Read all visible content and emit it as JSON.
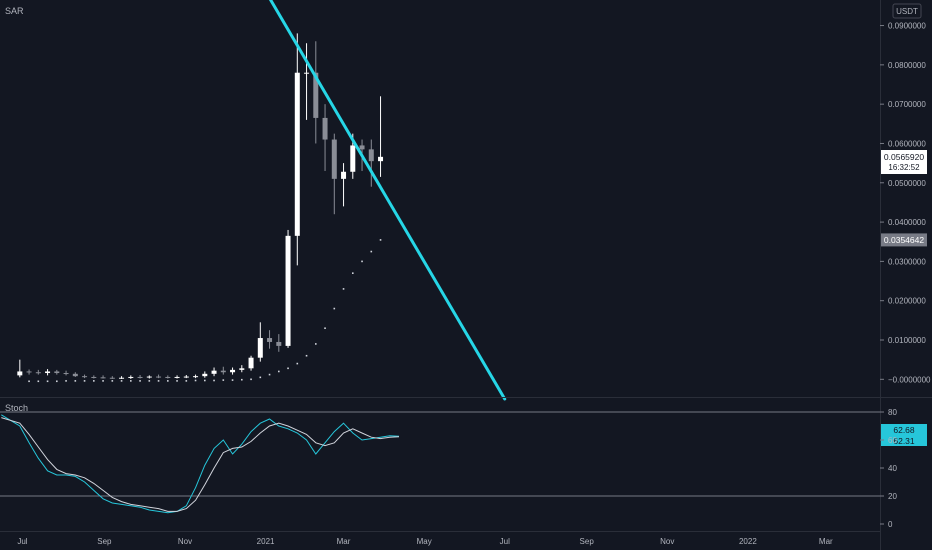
{
  "chart_data": [
    {
      "type": "candlestick",
      "title": "SAR",
      "currency": "USDT",
      "y_ticks": [
        "0.0900000",
        "0.0800000",
        "0.0700000",
        "0.0600000",
        "0.0500000",
        "0.0400000",
        "0.0300000",
        "0.0200000",
        "0.0100000",
        "−0.0000000"
      ],
      "y_tick_values": [
        0.09,
        0.08,
        0.07,
        0.06,
        0.05,
        0.04,
        0.03,
        0.02,
        0.01,
        0.0
      ],
      "ylim": [
        -0.0045,
        0.0965
      ],
      "x_ticks": [
        "Jul",
        "Sep",
        "Nov",
        "2021",
        "Mar",
        "May",
        "Jul",
        "Sep",
        "Nov",
        "2022",
        "Mar"
      ],
      "x_tick_dates": [
        "2020-07-01",
        "2020-09-01",
        "2020-11-01",
        "2021-01-01",
        "2021-03-01",
        "2021-05-01",
        "2021-07-01",
        "2021-09-01",
        "2021-11-01",
        "2022-01-01",
        "2022-03-01"
      ],
      "x_range_dates": [
        "2020-06-14",
        "2022-04-11"
      ],
      "current_price": "0.0565920",
      "countdown": "16:32:52",
      "sar_label": "0.0354642",
      "sar_value": 0.0354642,
      "candles": [
        {
          "t": "2020-06-29",
          "o": 0.001,
          "h": 0.005,
          "l": 0.0005,
          "c": 0.002
        },
        {
          "t": "2020-07-06",
          "o": 0.002,
          "h": 0.0025,
          "l": 0.0012,
          "c": 0.0018
        },
        {
          "t": "2020-07-13",
          "o": 0.0018,
          "h": 0.0024,
          "l": 0.0012,
          "c": 0.0016
        },
        {
          "t": "2020-07-20",
          "o": 0.0016,
          "h": 0.0026,
          "l": 0.001,
          "c": 0.002
        },
        {
          "t": "2020-07-27",
          "o": 0.002,
          "h": 0.0024,
          "l": 0.0012,
          "c": 0.0016
        },
        {
          "t": "2020-08-03",
          "o": 0.0016,
          "h": 0.0022,
          "l": 0.001,
          "c": 0.0014
        },
        {
          "t": "2020-08-10",
          "o": 0.0014,
          "h": 0.0018,
          "l": 0.0006,
          "c": 0.0008
        },
        {
          "t": "2020-08-17",
          "o": 0.0008,
          "h": 0.0012,
          "l": 0.0003,
          "c": 0.0006
        },
        {
          "t": "2020-08-24",
          "o": 0.0006,
          "h": 0.001,
          "l": 0.0002,
          "c": 0.0005
        },
        {
          "t": "2020-08-31",
          "o": 0.0005,
          "h": 0.001,
          "l": 0.0002,
          "c": 0.0004
        },
        {
          "t": "2020-09-07",
          "o": 0.0004,
          "h": 0.0008,
          "l": 0.0001,
          "c": 0.0003
        },
        {
          "t": "2020-09-14",
          "o": 0.0003,
          "h": 0.0008,
          "l": 0.0001,
          "c": 0.0004
        },
        {
          "t": "2020-09-21",
          "o": 0.0004,
          "h": 0.001,
          "l": 0.0001,
          "c": 0.0006
        },
        {
          "t": "2020-09-28",
          "o": 0.0006,
          "h": 0.0011,
          "l": 0.0002,
          "c": 0.0005
        },
        {
          "t": "2020-10-05",
          "o": 0.0005,
          "h": 0.001,
          "l": 0.0002,
          "c": 0.0007
        },
        {
          "t": "2020-10-12",
          "o": 0.0007,
          "h": 0.0012,
          "l": 0.0003,
          "c": 0.0006
        },
        {
          "t": "2020-10-19",
          "o": 0.0006,
          "h": 0.001,
          "l": 0.0002,
          "c": 0.0005
        },
        {
          "t": "2020-10-26",
          "o": 0.0005,
          "h": 0.001,
          "l": 0.0002,
          "c": 0.0006
        },
        {
          "t": "2020-11-02",
          "o": 0.0006,
          "h": 0.0011,
          "l": 0.0003,
          "c": 0.0007
        },
        {
          "t": "2020-11-09",
          "o": 0.0007,
          "h": 0.0012,
          "l": 0.0003,
          "c": 0.0008
        },
        {
          "t": "2020-11-16",
          "o": 0.0008,
          "h": 0.002,
          "l": 0.0004,
          "c": 0.0014
        },
        {
          "t": "2020-11-23",
          "o": 0.0014,
          "h": 0.003,
          "l": 0.0008,
          "c": 0.0022
        },
        {
          "t": "2020-11-30",
          "o": 0.0022,
          "h": 0.0032,
          "l": 0.0012,
          "c": 0.0018
        },
        {
          "t": "2020-12-07",
          "o": 0.0018,
          "h": 0.003,
          "l": 0.0012,
          "c": 0.0024
        },
        {
          "t": "2020-12-14",
          "o": 0.0024,
          "h": 0.0036,
          "l": 0.0018,
          "c": 0.0028
        },
        {
          "t": "2020-12-21",
          "o": 0.0028,
          "h": 0.006,
          "l": 0.0022,
          "c": 0.0055
        },
        {
          "t": "2020-12-28",
          "o": 0.0055,
          "h": 0.0145,
          "l": 0.0045,
          "c": 0.0105
        },
        {
          "t": "2021-01-04",
          "o": 0.0105,
          "h": 0.0125,
          "l": 0.0078,
          "c": 0.0095
        },
        {
          "t": "2021-01-11",
          "o": 0.0095,
          "h": 0.0115,
          "l": 0.007,
          "c": 0.0085
        },
        {
          "t": "2021-01-18",
          "o": 0.0085,
          "h": 0.038,
          "l": 0.008,
          "c": 0.0365
        },
        {
          "t": "2021-01-25",
          "o": 0.0365,
          "h": 0.088,
          "l": 0.029,
          "c": 0.078
        },
        {
          "t": "2021-02-01",
          "o": 0.078,
          "h": 0.0855,
          "l": 0.066,
          "c": 0.078
        },
        {
          "t": "2021-02-08",
          "o": 0.078,
          "h": 0.086,
          "l": 0.06,
          "c": 0.0665
        },
        {
          "t": "2021-02-15",
          "o": 0.0665,
          "h": 0.07,
          "l": 0.053,
          "c": 0.061
        },
        {
          "t": "2021-02-22",
          "o": 0.061,
          "h": 0.0625,
          "l": 0.042,
          "c": 0.051
        },
        {
          "t": "2021-03-01",
          "o": 0.051,
          "h": 0.055,
          "l": 0.044,
          "c": 0.0528
        },
        {
          "t": "2021-03-08",
          "o": 0.0528,
          "h": 0.0625,
          "l": 0.051,
          "c": 0.0595
        },
        {
          "t": "2021-03-15",
          "o": 0.0595,
          "h": 0.061,
          "l": 0.053,
          "c": 0.0585
        },
        {
          "t": "2021-03-22",
          "o": 0.0585,
          "h": 0.061,
          "l": 0.049,
          "c": 0.0555
        },
        {
          "t": "2021-03-29",
          "o": 0.0555,
          "h": 0.072,
          "l": 0.0515,
          "c": 0.0566
        }
      ],
      "sar_points": [
        {
          "t": "2020-07-06",
          "v": -0.0005
        },
        {
          "t": "2020-07-13",
          "v": -0.0005
        },
        {
          "t": "2020-07-20",
          "v": -0.0005
        },
        {
          "t": "2020-07-27",
          "v": -0.0005
        },
        {
          "t": "2020-08-03",
          "v": -0.0004
        },
        {
          "t": "2020-08-10",
          "v": -0.0004
        },
        {
          "t": "2020-08-17",
          "v": -0.0004
        },
        {
          "t": "2020-08-24",
          "v": -0.0004
        },
        {
          "t": "2020-08-31",
          "v": -0.0004
        },
        {
          "t": "2020-09-07",
          "v": -0.0004
        },
        {
          "t": "2020-09-14",
          "v": -0.0004
        },
        {
          "t": "2020-09-21",
          "v": -0.0004
        },
        {
          "t": "2020-09-28",
          "v": -0.0004
        },
        {
          "t": "2020-10-05",
          "v": -0.0004
        },
        {
          "t": "2020-10-12",
          "v": -0.0004
        },
        {
          "t": "2020-10-19",
          "v": -0.0004
        },
        {
          "t": "2020-10-26",
          "v": -0.0004
        },
        {
          "t": "2020-11-02",
          "v": -0.0004
        },
        {
          "t": "2020-11-09",
          "v": -0.0003
        },
        {
          "t": "2020-11-16",
          "v": -0.0003
        },
        {
          "t": "2020-11-23",
          "v": -0.0003
        },
        {
          "t": "2020-11-30",
          "v": -0.0002
        },
        {
          "t": "2020-12-07",
          "v": -0.0002
        },
        {
          "t": "2020-12-14",
          "v": -0.0001
        },
        {
          "t": "2020-12-21",
          "v": 0.0
        },
        {
          "t": "2020-12-28",
          "v": 0.0005
        },
        {
          "t": "2021-01-04",
          "v": 0.0012
        },
        {
          "t": "2021-01-11",
          "v": 0.002
        },
        {
          "t": "2021-01-18",
          "v": 0.0028
        },
        {
          "t": "2021-01-25",
          "v": 0.004
        },
        {
          "t": "2021-02-01",
          "v": 0.006
        },
        {
          "t": "2021-02-08",
          "v": 0.009
        },
        {
          "t": "2021-02-15",
          "v": 0.013
        },
        {
          "t": "2021-02-22",
          "v": 0.018
        },
        {
          "t": "2021-03-01",
          "v": 0.023
        },
        {
          "t": "2021-03-08",
          "v": 0.027
        },
        {
          "t": "2021-03-15",
          "v": 0.03
        },
        {
          "t": "2021-03-22",
          "v": 0.0325
        },
        {
          "t": "2021-03-29",
          "v": 0.0354642
        }
      ],
      "trendline": {
        "start": {
          "t": "2020-12-28",
          "v": 0.101
        },
        "end": {
          "t": "2021-07-01",
          "v": -0.005
        },
        "color": "#26d6e6"
      },
      "up_color": "#ffffff",
      "down_color": "#8a8d96"
    },
    {
      "type": "line",
      "title": "Stoch",
      "y_ticks": [
        "80",
        "60",
        "40",
        "20",
        "0"
      ],
      "y_tick_values": [
        80,
        60,
        40,
        20,
        0
      ],
      "ylim": [
        -5,
        90
      ],
      "bands": [
        80,
        20
      ],
      "k_label": "62.68",
      "d_label": "62.31",
      "series": [
        {
          "key": "k",
          "color": "#26c6da",
          "points": [
            {
              "t": "2020-06-15",
              "v": 78
            },
            {
              "t": "2020-06-29",
              "v": 70
            },
            {
              "t": "2020-07-06",
              "v": 58
            },
            {
              "t": "2020-07-13",
              "v": 47
            },
            {
              "t": "2020-07-20",
              "v": 38
            },
            {
              "t": "2020-07-27",
              "v": 35
            },
            {
              "t": "2020-08-03",
              "v": 35
            },
            {
              "t": "2020-08-10",
              "v": 34
            },
            {
              "t": "2020-08-17",
              "v": 30
            },
            {
              "t": "2020-08-24",
              "v": 24
            },
            {
              "t": "2020-08-31",
              "v": 18
            },
            {
              "t": "2020-09-07",
              "v": 15
            },
            {
              "t": "2020-09-14",
              "v": 14
            },
            {
              "t": "2020-09-21",
              "v": 13
            },
            {
              "t": "2020-09-28",
              "v": 12
            },
            {
              "t": "2020-10-05",
              "v": 10
            },
            {
              "t": "2020-10-12",
              "v": 9
            },
            {
              "t": "2020-10-19",
              "v": 8
            },
            {
              "t": "2020-10-26",
              "v": 9
            },
            {
              "t": "2020-11-02",
              "v": 13
            },
            {
              "t": "2020-11-09",
              "v": 26
            },
            {
              "t": "2020-11-16",
              "v": 42
            },
            {
              "t": "2020-11-23",
              "v": 54
            },
            {
              "t": "2020-11-30",
              "v": 60
            },
            {
              "t": "2020-12-07",
              "v": 50
            },
            {
              "t": "2020-12-14",
              "v": 57
            },
            {
              "t": "2020-12-21",
              "v": 66
            },
            {
              "t": "2020-12-28",
              "v": 72
            },
            {
              "t": "2021-01-04",
              "v": 75
            },
            {
              "t": "2021-01-11",
              "v": 70
            },
            {
              "t": "2021-01-18",
              "v": 68
            },
            {
              "t": "2021-01-25",
              "v": 65
            },
            {
              "t": "2021-02-01",
              "v": 60
            },
            {
              "t": "2021-02-08",
              "v": 50
            },
            {
              "t": "2021-02-15",
              "v": 58
            },
            {
              "t": "2021-02-22",
              "v": 66
            },
            {
              "t": "2021-03-01",
              "v": 72
            },
            {
              "t": "2021-03-08",
              "v": 65
            },
            {
              "t": "2021-03-15",
              "v": 60
            },
            {
              "t": "2021-03-22",
              "v": 61
            },
            {
              "t": "2021-03-29",
              "v": 62
            },
            {
              "t": "2021-04-05",
              "v": 63
            },
            {
              "t": "2021-04-12",
              "v": 62.68
            }
          ]
        },
        {
          "key": "d",
          "color": "#d1d4dc",
          "points": [
            {
              "t": "2020-06-15",
              "v": 76
            },
            {
              "t": "2020-06-29",
              "v": 72
            },
            {
              "t": "2020-07-06",
              "v": 64
            },
            {
              "t": "2020-07-13",
              "v": 55
            },
            {
              "t": "2020-07-20",
              "v": 46
            },
            {
              "t": "2020-07-27",
              "v": 39
            },
            {
              "t": "2020-08-03",
              "v": 36
            },
            {
              "t": "2020-08-10",
              "v": 35
            },
            {
              "t": "2020-08-17",
              "v": 33
            },
            {
              "t": "2020-08-24",
              "v": 29
            },
            {
              "t": "2020-08-31",
              "v": 24
            },
            {
              "t": "2020-09-07",
              "v": 19
            },
            {
              "t": "2020-09-14",
              "v": 16
            },
            {
              "t": "2020-09-21",
              "v": 14
            },
            {
              "t": "2020-09-28",
              "v": 13
            },
            {
              "t": "2020-10-05",
              "v": 12
            },
            {
              "t": "2020-10-12",
              "v": 11
            },
            {
              "t": "2020-10-19",
              "v": 9
            },
            {
              "t": "2020-10-26",
              "v": 9
            },
            {
              "t": "2020-11-02",
              "v": 11
            },
            {
              "t": "2020-11-09",
              "v": 17
            },
            {
              "t": "2020-11-16",
              "v": 28
            },
            {
              "t": "2020-11-23",
              "v": 40
            },
            {
              "t": "2020-11-30",
              "v": 51
            },
            {
              "t": "2020-12-07",
              "v": 54
            },
            {
              "t": "2020-12-14",
              "v": 55
            },
            {
              "t": "2020-12-21",
              "v": 59
            },
            {
              "t": "2020-12-28",
              "v": 65
            },
            {
              "t": "2021-01-04",
              "v": 70
            },
            {
              "t": "2021-01-11",
              "v": 72
            },
            {
              "t": "2021-01-18",
              "v": 70
            },
            {
              "t": "2021-01-25",
              "v": 67
            },
            {
              "t": "2021-02-01",
              "v": 64
            },
            {
              "t": "2021-02-08",
              "v": 58
            },
            {
              "t": "2021-02-15",
              "v": 56
            },
            {
              "t": "2021-02-22",
              "v": 58
            },
            {
              "t": "2021-03-01",
              "v": 65
            },
            {
              "t": "2021-03-08",
              "v": 68
            },
            {
              "t": "2021-03-15",
              "v": 65
            },
            {
              "t": "2021-03-22",
              "v": 62
            },
            {
              "t": "2021-03-29",
              "v": 61
            },
            {
              "t": "2021-04-05",
              "v": 62
            },
            {
              "t": "2021-04-12",
              "v": 62.31
            }
          ]
        }
      ]
    }
  ]
}
